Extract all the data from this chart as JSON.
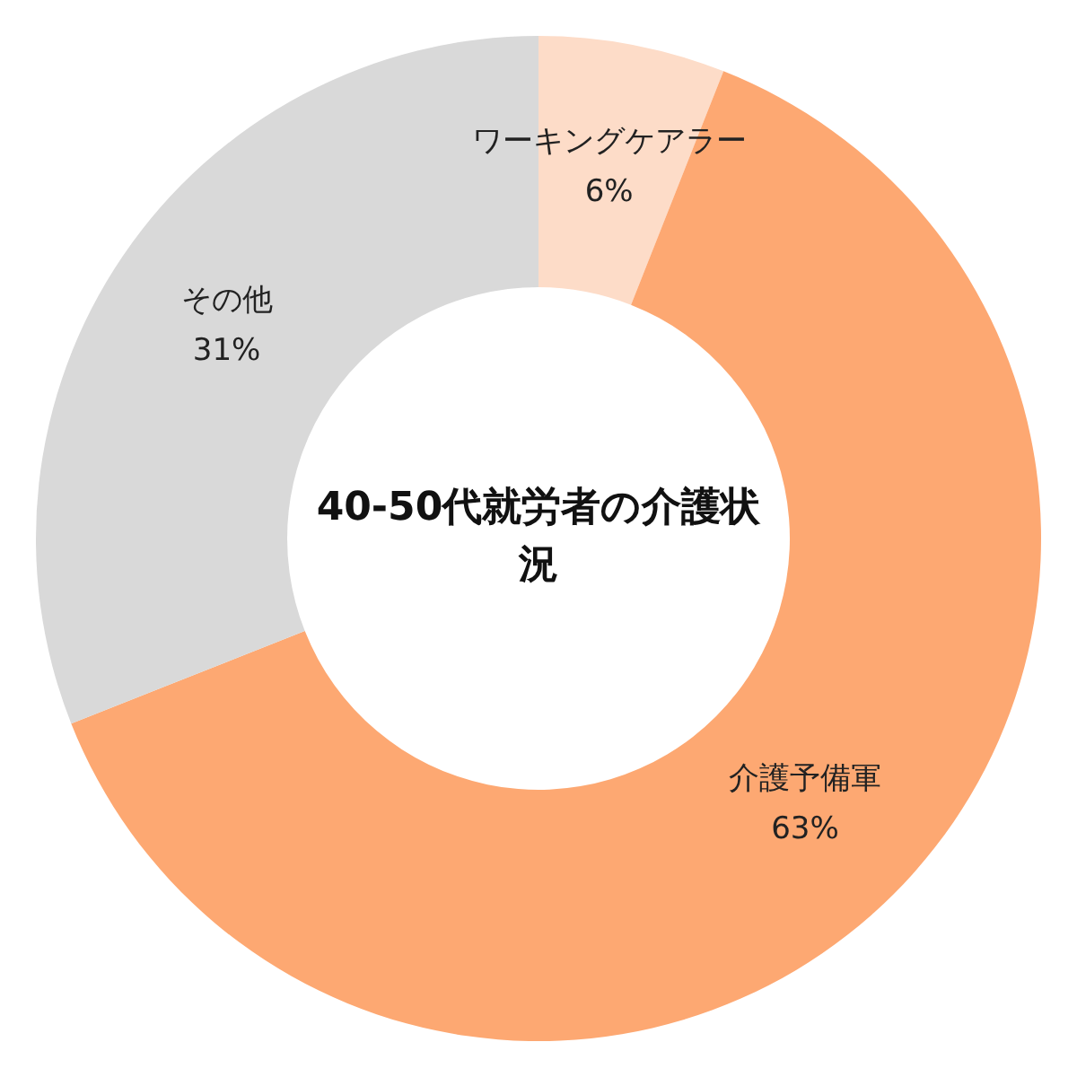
{
  "chart_data": {
    "type": "donut",
    "title": "40-50代就労者の介護状況",
    "categories": [
      "ワーキングケアラー",
      "介護予備軍",
      "その他"
    ],
    "values": [
      6,
      63,
      31
    ],
    "value_labels": [
      "6%",
      "63%",
      "31%"
    ],
    "colors": [
      "#fddcc8",
      "#fda872",
      "#d9d9d9"
    ],
    "legend": false
  }
}
